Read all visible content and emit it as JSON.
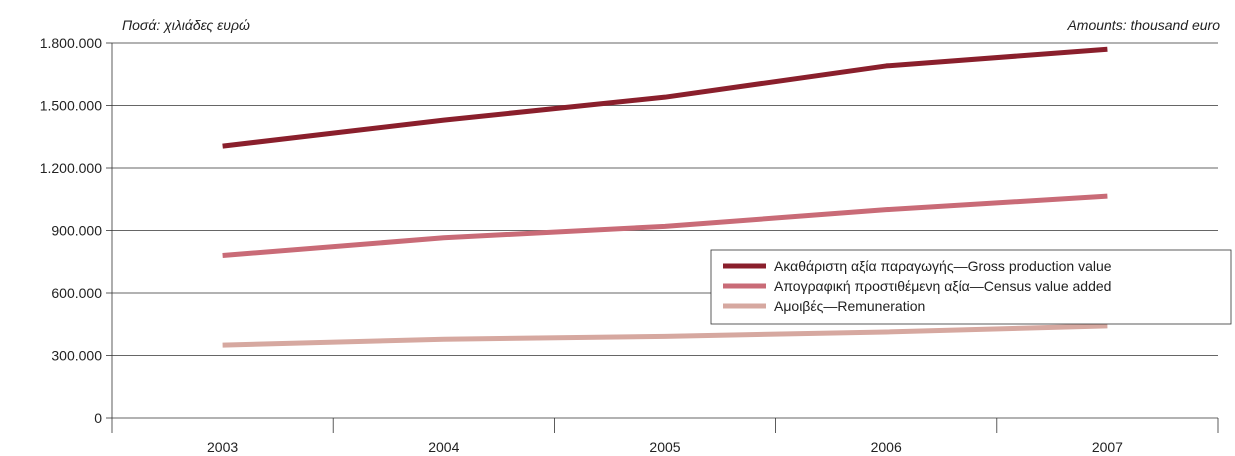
{
  "units": {
    "left": "Ποσά: χιλιάδες ευρώ",
    "right": "Amounts: thousand euro"
  },
  "chart_data": {
    "type": "line",
    "title": "",
    "xlabel": "",
    "ylabel": "",
    "categories": [
      "2003",
      "2004",
      "2005",
      "2006",
      "2007"
    ],
    "ylim": [
      0,
      1800000
    ],
    "yticks": [
      0,
      300000,
      600000,
      900000,
      1200000,
      1500000,
      1800000
    ],
    "ytick_labels": [
      "0",
      "300.000",
      "600.000",
      "900.000",
      "1.200.000",
      "1.500.000",
      "1.800.000"
    ],
    "grid": "horizontal",
    "legend_position": "center-right",
    "series": [
      {
        "name": "Ακαθάριστη αξία παραγωγής—Gross production value",
        "color": "#8a1f2c",
        "values": [
          1305000,
          1430000,
          1540000,
          1690000,
          1770000
        ]
      },
      {
        "name": "Απογραφική προστιθέμενη αξία—Census value added",
        "color": "#c96b77",
        "values": [
          780000,
          865000,
          920000,
          1000000,
          1065000
        ]
      },
      {
        "name": "Αμοιβές—Remuneration",
        "color": "#d6a8a0",
        "values": [
          350000,
          378000,
          392000,
          413000,
          442000
        ]
      }
    ]
  }
}
